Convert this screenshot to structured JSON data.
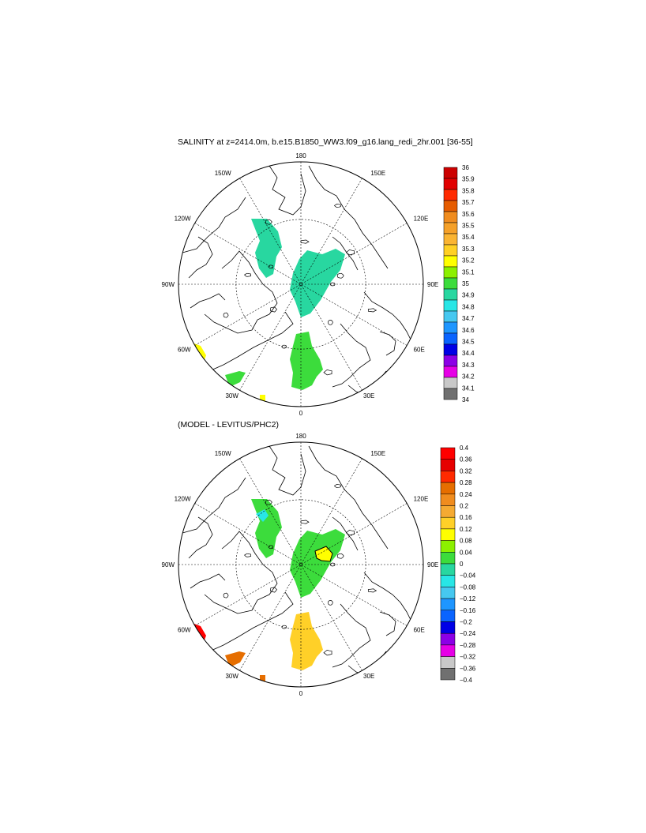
{
  "page": {
    "title": "SALINITY at z=2414.0m, b.e15.B1850_WW3.f09_g16.lang_redi_2hr.001 [36-55]",
    "diff_title": "(MODEL - LEVITUS/PHC2)"
  },
  "longitude_labels": {
    "top": "180",
    "bottom": "0",
    "left": "90W",
    "right": "90E",
    "upper_left_inner": "150W",
    "upper_right_inner": "150E",
    "upper_left_outer": "120W",
    "upper_right_outer": "120E",
    "lower_left_outer": "60W",
    "lower_right_outer": "60E",
    "lower_left_inner": "30W",
    "lower_right_inner": "30E"
  },
  "colorbars": {
    "salinity": {
      "labels": [
        "36",
        "35.9",
        "35.8",
        "35.7",
        "35.6",
        "35.5",
        "35.4",
        "35.3",
        "35.2",
        "35.1",
        "35",
        "34.9",
        "34.8",
        "34.7",
        "34.6",
        "34.5",
        "34.4",
        "34.3",
        "34.2",
        "34.1",
        "34"
      ],
      "colors": [
        "#cc0000",
        "#e10000",
        "#ff2a00",
        "#e65c00",
        "#f08c1e",
        "#f5a028",
        "#fab432",
        "#ffd024",
        "#ffff00",
        "#8cf000",
        "#3cdc3c",
        "#28d7a0",
        "#28e6e6",
        "#46c8f0",
        "#1e96ff",
        "#0a64ff",
        "#0000e6",
        "#8c00e6",
        "#e600e6",
        "#c8c8c8",
        "#707070"
      ]
    },
    "difference": {
      "labels": [
        "0.4",
        "0.36",
        "0.32",
        "0.28",
        "0.24",
        "0.2",
        "0.16",
        "0.12",
        "0.08",
        "0.04",
        "0",
        "−0.04",
        "−0.08",
        "−0.12",
        "−0.16",
        "−0.2",
        "−0.24",
        "−0.28",
        "−0.32",
        "−0.36",
        "−0.4"
      ],
      "colors": [
        "#ff0000",
        "#e60000",
        "#ff2a00",
        "#e66e00",
        "#f08c1e",
        "#f5aa32",
        "#ffd028",
        "#ffff00",
        "#8cf000",
        "#3cdc3c",
        "#28d7a0",
        "#28e6e6",
        "#46c8f0",
        "#1e96ff",
        "#0a64ff",
        "#0000e6",
        "#8c00e6",
        "#e600e6",
        "#c8c8c8",
        "#707070"
      ]
    }
  },
  "map_data": {
    "top_panel": {
      "variable": "salinity",
      "regions": [
        {
          "area": "canada-basin",
          "color": "#28d7a0"
        },
        {
          "area": "makarov-eurasian-basin",
          "color": "#28d7a0"
        },
        {
          "area": "greenland-norwegian-sea",
          "color": "#3cdc3c"
        },
        {
          "area": "labrador-sea-corner",
          "color": "#ffff00"
        },
        {
          "area": "north-atlantic-corner",
          "color": "#3cdc3c"
        },
        {
          "area": "iceland-south-patch",
          "color": "#ffff00"
        }
      ]
    },
    "bottom_panel": {
      "variable": "difference",
      "regions": [
        {
          "area": "canada-basin",
          "color": "#3cdc3c"
        },
        {
          "area": "canada-basin-spot",
          "color": "#28e6e6"
        },
        {
          "area": "makarov-eurasian-basin",
          "color": "#3cdc3c"
        },
        {
          "area": "eurasian-basin-spot",
          "color": "#ffff00"
        },
        {
          "area": "greenland-norwegian-sea",
          "color": "#ffd028"
        },
        {
          "area": "labrador-sea-corner",
          "color": "#ff0000"
        },
        {
          "area": "north-atlantic-corner",
          "color": "#e66e00"
        },
        {
          "area": "iceland-south-patch",
          "color": "#e66e00"
        }
      ]
    }
  }
}
